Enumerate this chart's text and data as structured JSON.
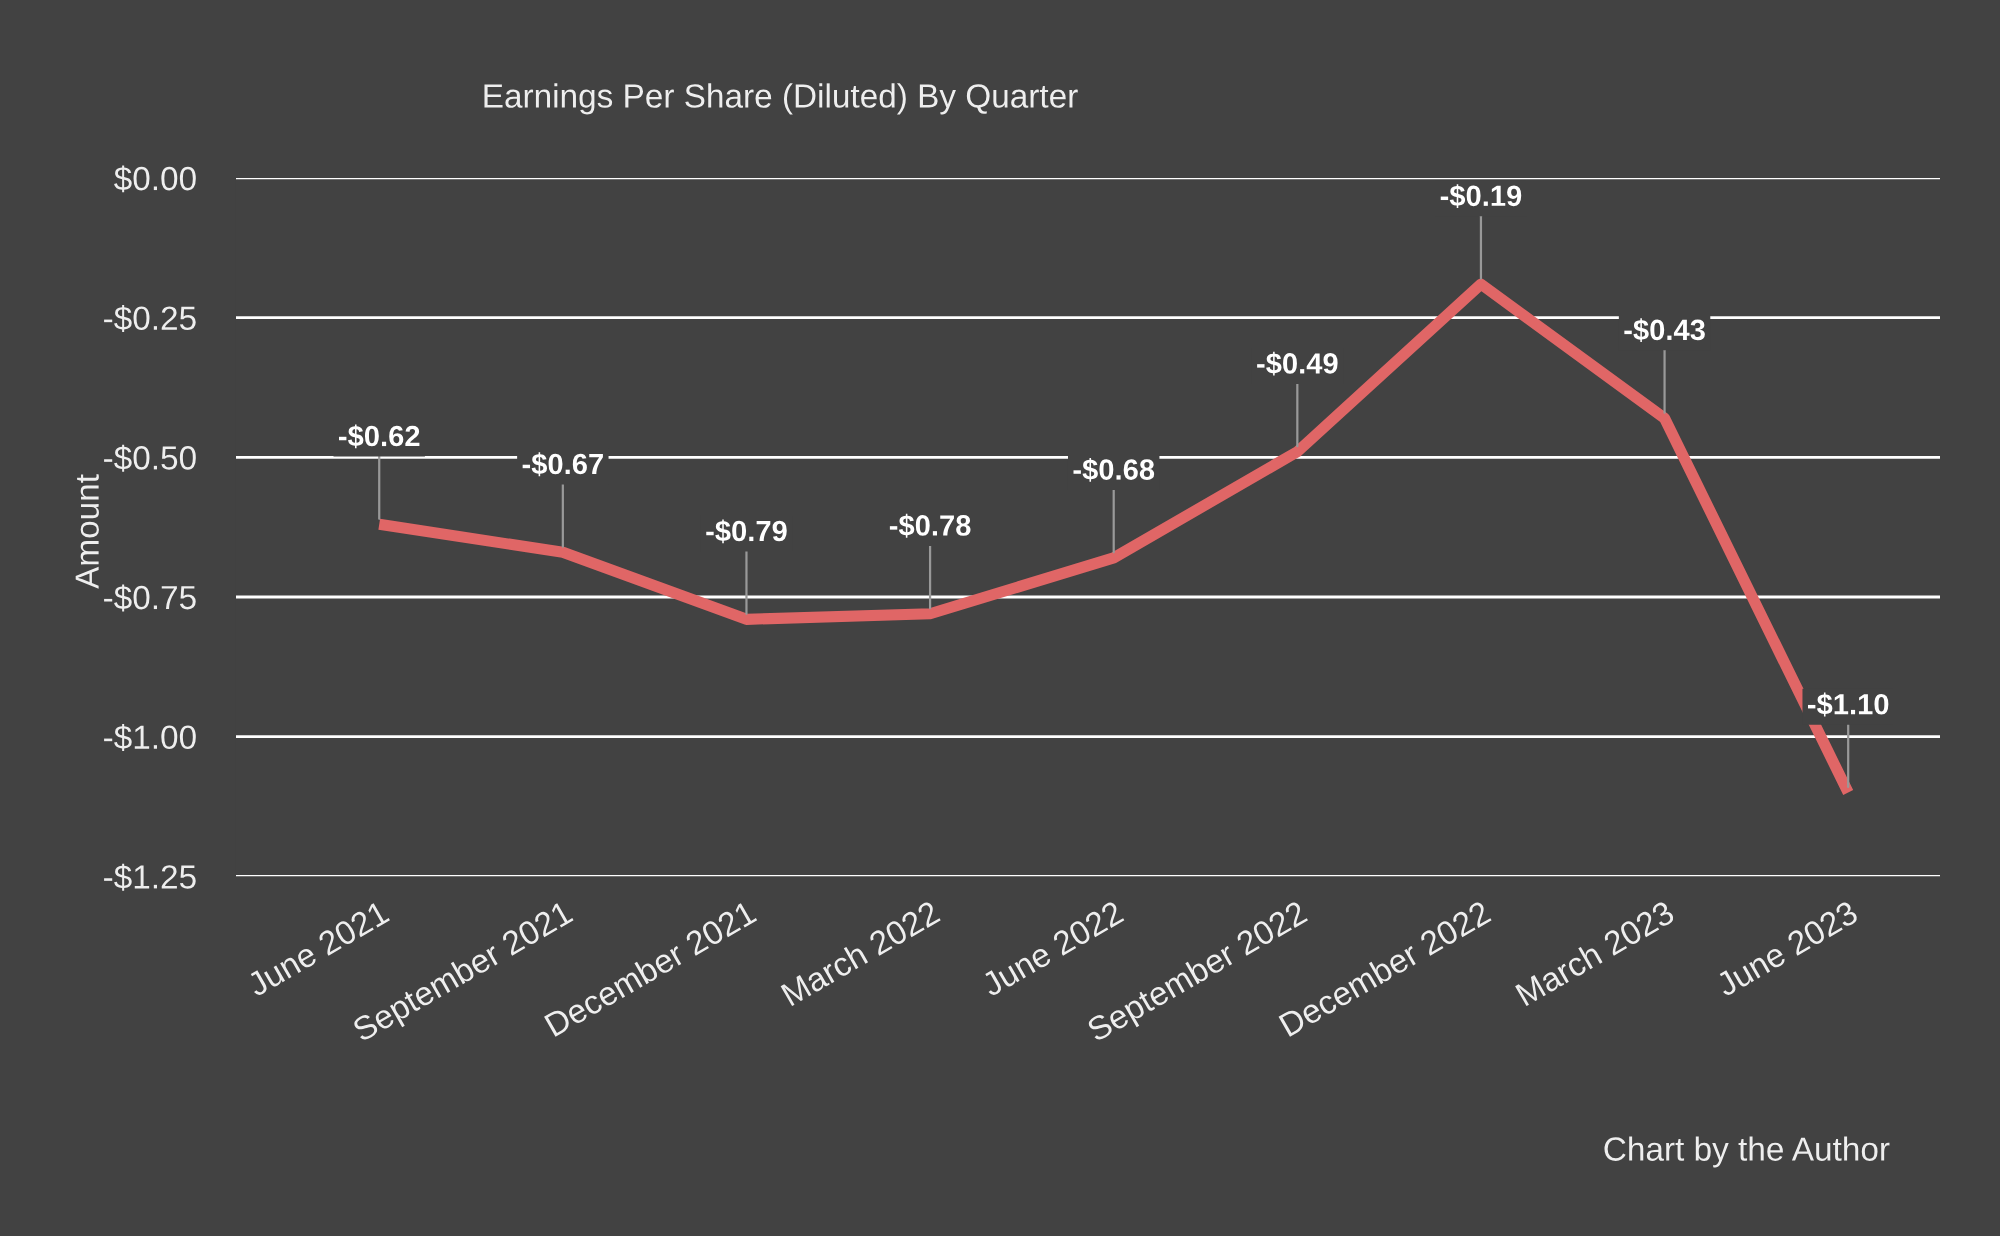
{
  "chart_data": {
    "type": "line",
    "title": "Earnings Per Share (Diluted) By Quarter",
    "ylabel": "Amount",
    "categories": [
      "June 2021",
      "September 2021",
      "December 2021",
      "March 2022",
      "June 2022",
      "September 2022",
      "December 2022",
      "March 2023",
      "June 2023"
    ],
    "series": [
      {
        "color": "#e06666",
        "values": [
          -0.62,
          -0.67,
          -0.79,
          -0.78,
          -0.68,
          -0.49,
          -0.19,
          -0.43,
          -1.1
        ],
        "value_labels": [
          "-$0.62",
          "-$0.67",
          "-$0.79",
          "-$0.78",
          "-$0.68",
          "-$0.49",
          "-$0.19",
          "-$0.43",
          "-$1.10"
        ]
      }
    ],
    "ylim": [
      -1.25,
      0
    ],
    "yticks": [
      {
        "value": 0,
        "label": "$0.00"
      },
      {
        "value": -0.25,
        "label": "-$0.25"
      },
      {
        "value": -0.5,
        "label": "-$0.50"
      },
      {
        "value": -0.75,
        "label": "-$0.75"
      },
      {
        "value": -1.0,
        "label": "-$1.00"
      },
      {
        "value": -1.25,
        "label": "-$1.25"
      }
    ],
    "grid": "y",
    "marker": "none",
    "line_style": "solid",
    "annotations": [
      "Chart by the Author"
    ]
  }
}
